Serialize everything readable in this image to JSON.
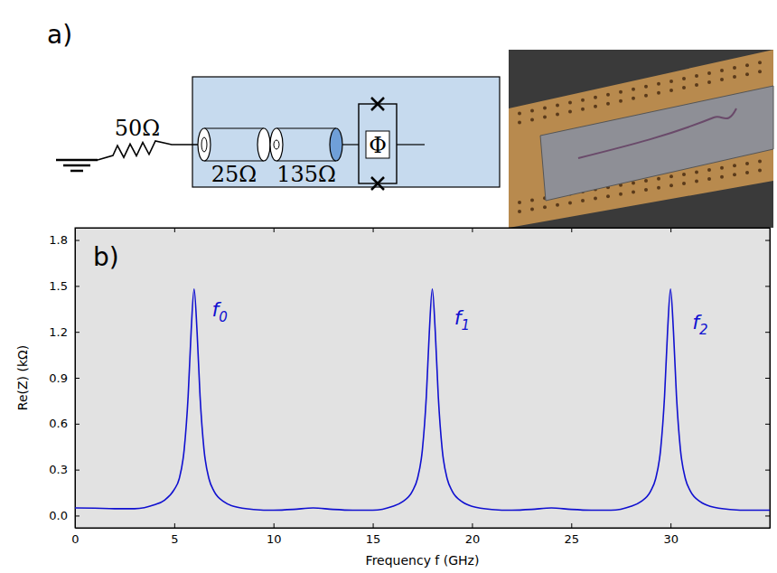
{
  "diagram": {
    "panel_label": "a)",
    "resistor": "50Ω",
    "lines": [
      "25Ω",
      "135Ω"
    ],
    "squid": "Φ"
  },
  "chart_data": {
    "type": "line",
    "title": "b)",
    "x_label": "Frequency f (GHz)",
    "y_label": "Re(Z) (kΩ)",
    "x": [
      0,
      1,
      2,
      3,
      4,
      4.5,
      5,
      5.25,
      5.5,
      5.7,
      5.85,
      6,
      6.15,
      6.3,
      6.5,
      6.75,
      7,
      7.5,
      8,
      9,
      10,
      11,
      12,
      13,
      14,
      15,
      16,
      16.5,
      17,
      17.25,
      17.5,
      17.7,
      17.85,
      18,
      18.15,
      18.3,
      18.5,
      18.75,
      19,
      19.5,
      20,
      21,
      22,
      23,
      24,
      25,
      26,
      27,
      28,
      28.5,
      29,
      29.25,
      29.5,
      29.7,
      29.85,
      30,
      30.15,
      30.3,
      30.5,
      30.75,
      31,
      31.5,
      32,
      33,
      34,
      35
    ],
    "values": [
      0.05,
      0.048,
      0.045,
      0.045,
      0.07,
      0.1,
      0.17,
      0.24,
      0.43,
      0.78,
      1.2,
      1.48,
      1.2,
      0.78,
      0.43,
      0.24,
      0.16,
      0.09,
      0.06,
      0.04,
      0.035,
      0.04,
      0.05,
      0.04,
      0.035,
      0.035,
      0.06,
      0.09,
      0.16,
      0.24,
      0.43,
      0.78,
      1.2,
      1.48,
      1.2,
      0.78,
      0.43,
      0.24,
      0.16,
      0.09,
      0.06,
      0.04,
      0.035,
      0.04,
      0.05,
      0.04,
      0.035,
      0.035,
      0.06,
      0.09,
      0.16,
      0.24,
      0.43,
      0.78,
      1.2,
      1.48,
      1.2,
      0.78,
      0.43,
      0.24,
      0.16,
      0.09,
      0.06,
      0.04,
      0.035,
      0.035
    ],
    "color": "#1010d0",
    "xlim": [
      0,
      35
    ],
    "xticks": [
      0,
      5,
      10,
      15,
      20,
      25,
      30
    ],
    "ylim": [
      -0.08,
      1.88
    ],
    "yticks": [
      {
        "value": 0,
        "label": "0.0"
      },
      0.3,
      0.6,
      0.9,
      1.2,
      1.5,
      1.8
    ],
    "annotations": [
      {
        "text": "f0",
        "x": 6.9,
        "y": 1.3
      },
      {
        "text": "f1",
        "x": 19.1,
        "y": 1.25
      },
      {
        "text": "f2",
        "x": 31.1,
        "y": 1.22
      }
    ],
    "grid": false
  }
}
